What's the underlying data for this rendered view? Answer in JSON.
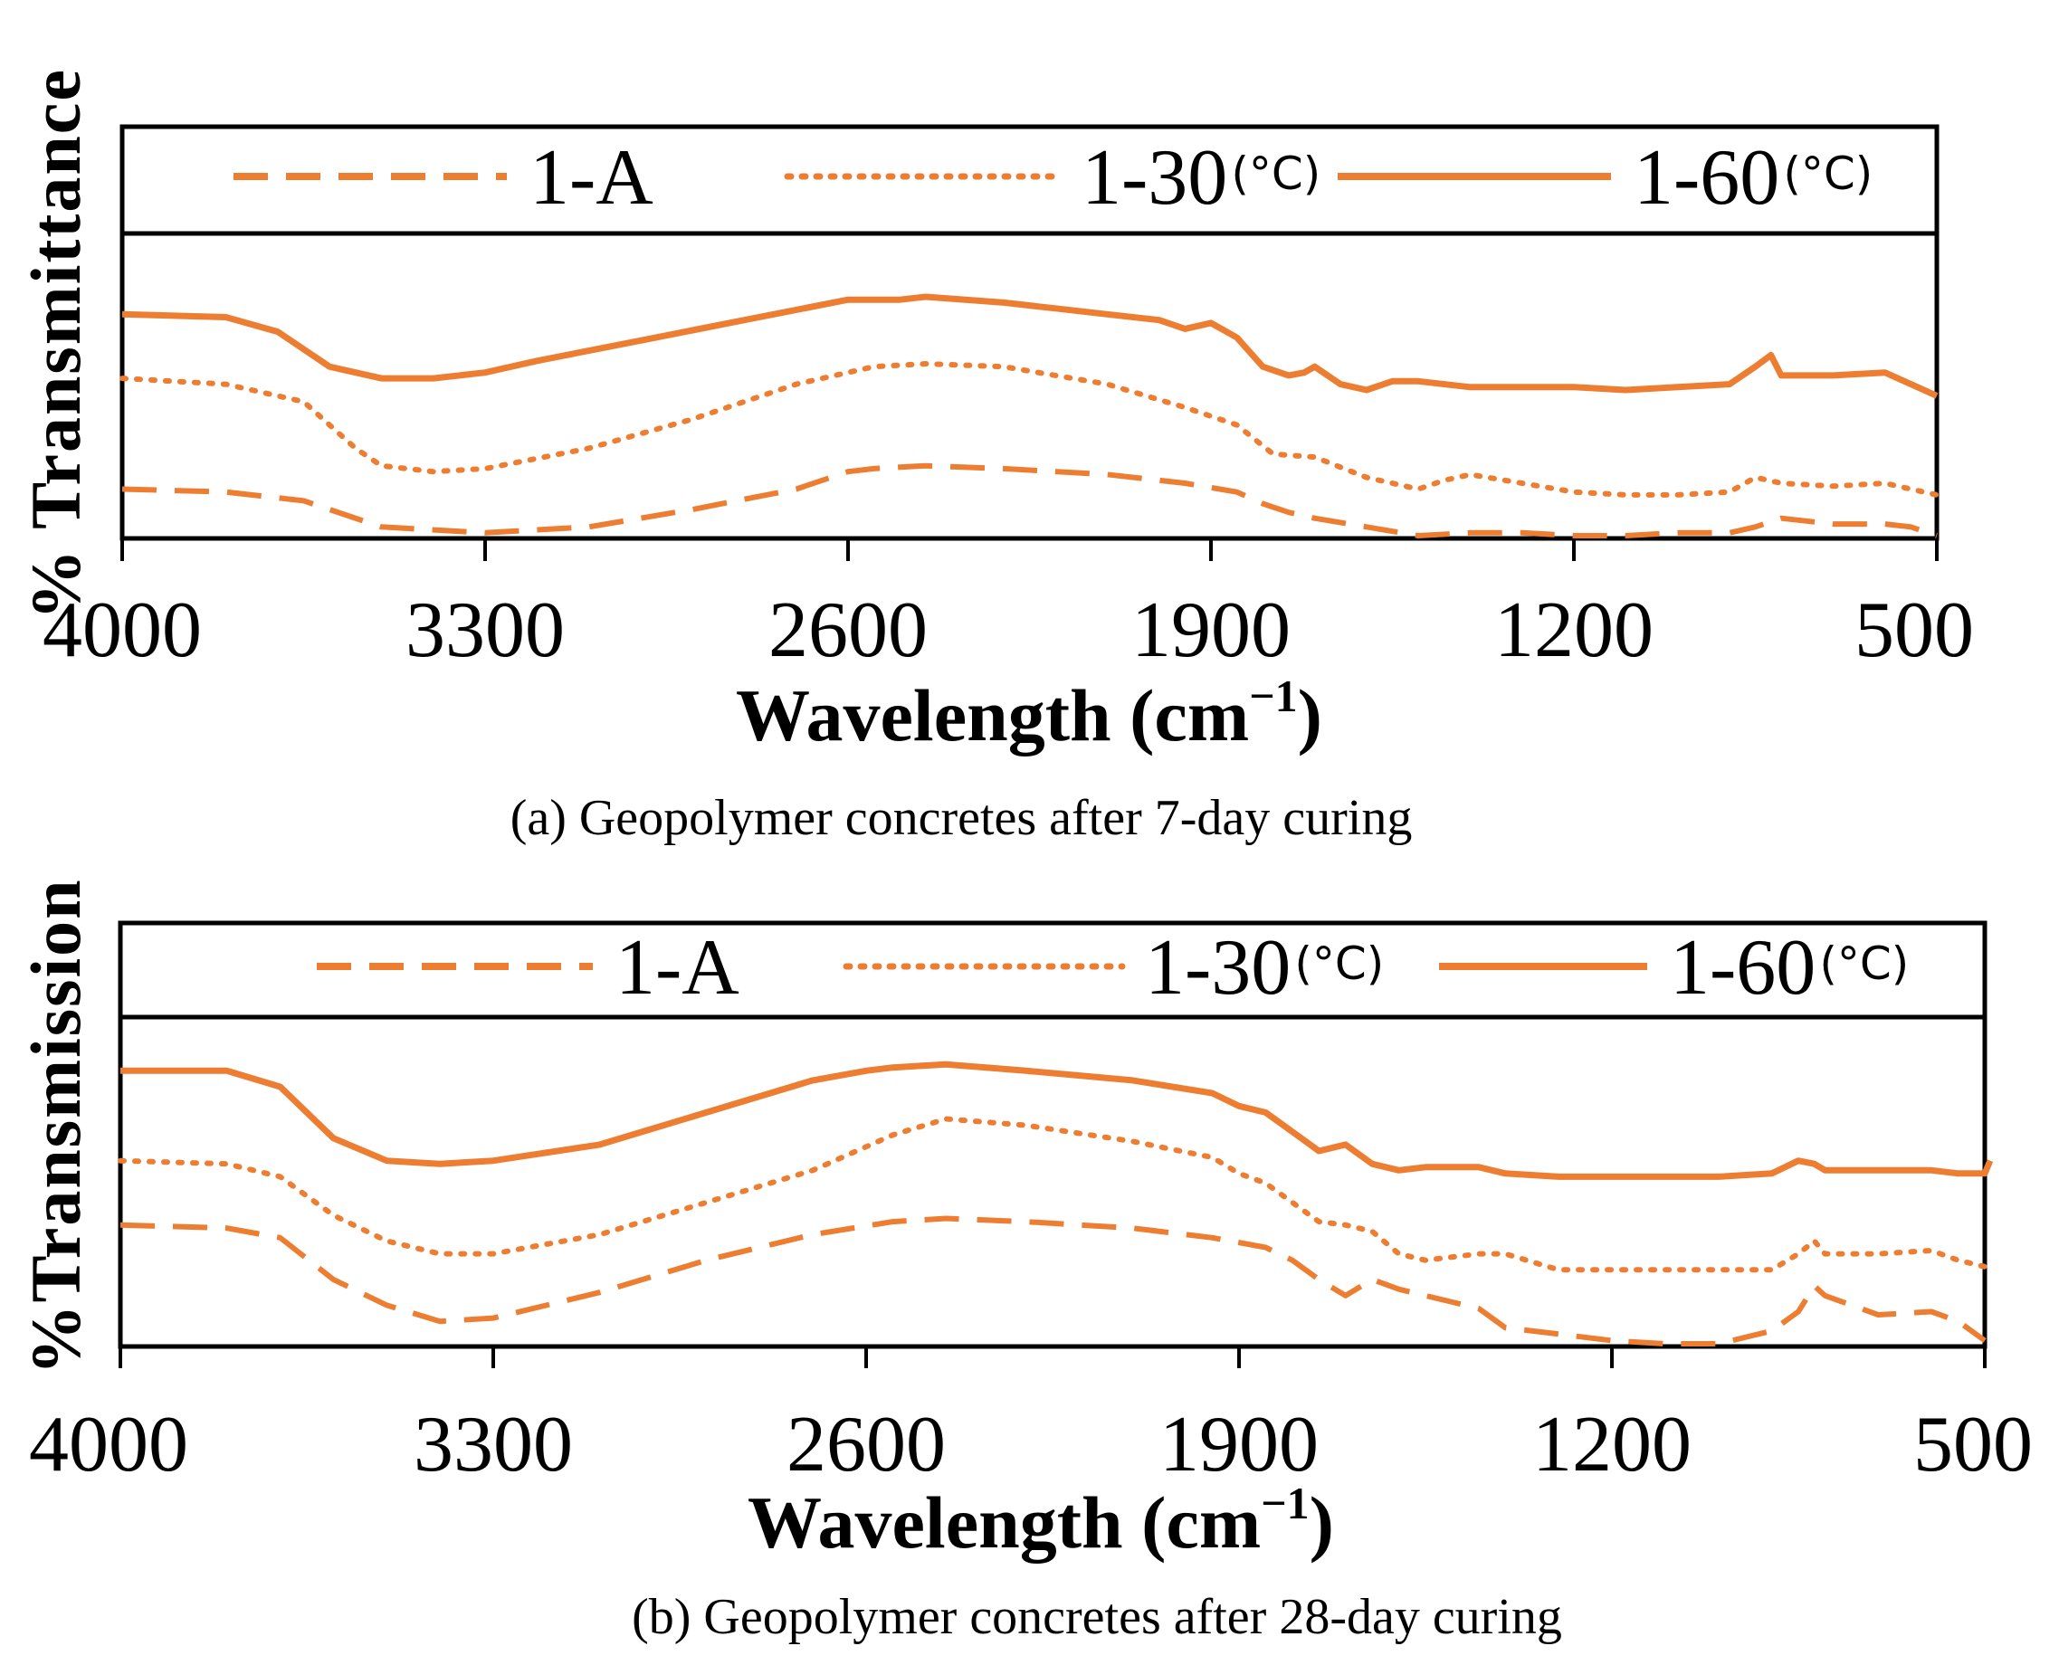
{
  "colors": {
    "series": "#ED7D31",
    "axis": "#000000"
  },
  "chart_data": [
    {
      "type": "line",
      "panel_caption": "(a) Geopolymer concretes after 7-day curing",
      "ylabel": "% Transmittance",
      "xlabel": "Wavelength (cm",
      "xlabel_sup": "−1",
      "xlabel_close": ")",
      "x_ticks": [
        "4000",
        "3300",
        "2600",
        "1900",
        "1200",
        "500"
      ],
      "xlim": [
        4000,
        500
      ],
      "x_reversed": true,
      "ylim": [
        0,
        100
      ],
      "grid": false,
      "legend_position": "top",
      "series": [
        {
          "name": "1-A",
          "unit": "",
          "style": "dashed",
          "x": [
            4000,
            3800,
            3650,
            3500,
            3300,
            3100,
            2900,
            2700,
            2600,
            2550,
            2450,
            2300,
            2100,
            1950,
            1850,
            1800,
            1750,
            1700,
            1600,
            1500,
            1400,
            1300,
            1200,
            1100,
            1000,
            900,
            850,
            800,
            700,
            600,
            550,
            500
          ],
          "y": [
            16,
            15,
            12,
            3,
            1,
            3,
            9,
            16,
            22,
            23,
            24,
            23,
            21,
            18,
            15,
            11,
            8,
            6,
            3,
            0,
            1,
            1,
            0,
            0,
            1,
            1,
            3,
            6,
            4,
            4,
            3,
            0
          ]
        },
        {
          "name": "1-30",
          "unit": "(°C)",
          "style": "dotted",
          "x": [
            4000,
            3800,
            3650,
            3550,
            3500,
            3400,
            3300,
            3100,
            2900,
            2700,
            2550,
            2450,
            2300,
            2100,
            1950,
            1850,
            1780,
            1700,
            1600,
            1500,
            1450,
            1400,
            1300,
            1200,
            1100,
            1000,
            900,
            850,
            800,
            700,
            600,
            550,
            500
          ],
          "y": [
            54,
            52,
            46,
            30,
            24,
            22,
            23,
            30,
            40,
            52,
            58,
            59,
            58,
            52,
            44,
            38,
            28,
            27,
            20,
            16,
            19,
            21,
            18,
            15,
            14,
            14,
            15,
            20,
            18,
            17,
            18,
            16,
            14
          ]
        },
        {
          "name": "1-60",
          "unit": "(°C)",
          "style": "solid",
          "x": [
            4000,
            3800,
            3700,
            3600,
            3500,
            3400,
            3300,
            3200,
            3000,
            2800,
            2600,
            2500,
            2450,
            2300,
            2200,
            2100,
            2000,
            1950,
            1900,
            1850,
            1800,
            1750,
            1720,
            1700,
            1650,
            1600,
            1550,
            1500,
            1400,
            1300,
            1200,
            1100,
            1000,
            900,
            850,
            820,
            800,
            700,
            600,
            550,
            500
          ],
          "y": [
            76,
            75,
            70,
            58,
            54,
            54,
            56,
            60,
            67,
            74,
            81,
            81,
            82,
            80,
            78,
            76,
            74,
            71,
            73,
            68,
            58,
            55,
            56,
            58,
            52,
            50,
            53,
            53,
            51,
            51,
            51,
            50,
            51,
            52,
            58,
            62,
            55,
            55,
            56,
            52,
            48
          ]
        }
      ]
    },
    {
      "type": "line",
      "panel_caption": "(b) Geopolymer concretes after 28-day curing",
      "ylabel": "%Transmission",
      "xlabel": "Wavelength (cm",
      "xlabel_sup": "−1",
      "xlabel_close": ")",
      "x_ticks": [
        "4000",
        "3300",
        "2600",
        "1900",
        "1200",
        "500"
      ],
      "xlim": [
        4000,
        500
      ],
      "x_reversed": true,
      "ylim": [
        0,
        100
      ],
      "grid": false,
      "legend_position": "top",
      "series": [
        {
          "name": "1-A",
          "unit": "",
          "style": "dashed",
          "x": [
            4000,
            3800,
            3700,
            3600,
            3500,
            3400,
            3300,
            3100,
            2900,
            2700,
            2550,
            2450,
            2300,
            2100,
            1950,
            1850,
            1800,
            1750,
            1700,
            1650,
            1600,
            1550,
            1450,
            1400,
            1300,
            1200,
            1100,
            1000,
            900,
            850,
            820,
            800,
            700,
            600,
            550,
            500
          ],
          "y": [
            37,
            36,
            33,
            20,
            12,
            7,
            8,
            16,
            26,
            34,
            38,
            39,
            38,
            36,
            33,
            30,
            26,
            20,
            15,
            20,
            17,
            15,
            11,
            5,
            3,
            1,
            0,
            0,
            4,
            10,
            18,
            15,
            9,
            10,
            7,
            1
          ]
        },
        {
          "name": "1-30",
          "unit": "(°C)",
          "style": "dotted",
          "x": [
            4000,
            3800,
            3700,
            3600,
            3500,
            3400,
            3300,
            3100,
            2900,
            2700,
            2550,
            2450,
            2300,
            2100,
            1950,
            1900,
            1850,
            1800,
            1750,
            1700,
            1650,
            1600,
            1550,
            1450,
            1400,
            1300,
            1200,
            1100,
            1000,
            900,
            850,
            820,
            800,
            700,
            600,
            550,
            500
          ],
          "y": [
            57,
            56,
            52,
            40,
            32,
            28,
            28,
            34,
            44,
            54,
            65,
            70,
            68,
            63,
            58,
            53,
            50,
            44,
            38,
            37,
            35,
            28,
            26,
            28,
            28,
            23,
            23,
            23,
            23,
            23,
            28,
            32,
            28,
            28,
            29,
            26,
            24
          ]
        },
        {
          "name": "1-60",
          "unit": "(°C)",
          "style": "solid",
          "x": [
            4000,
            3800,
            3700,
            3600,
            3500,
            3400,
            3300,
            3100,
            2900,
            2700,
            2600,
            2550,
            2450,
            2300,
            2100,
            1950,
            1900,
            1850,
            1800,
            1750,
            1700,
            1650,
            1600,
            1550,
            1450,
            1400,
            1300,
            1200,
            1100,
            1000,
            900,
            850,
            820,
            800,
            700,
            600,
            550,
            500,
            490
          ],
          "y": [
            85,
            85,
            80,
            64,
            57,
            56,
            57,
            62,
            72,
            82,
            85,
            86,
            87,
            85,
            82,
            78,
            74,
            72,
            66,
            60,
            62,
            56,
            54,
            55,
            55,
            53,
            52,
            52,
            52,
            52,
            53,
            57,
            56,
            54,
            54,
            54,
            53,
            53,
            57
          ]
        }
      ]
    }
  ]
}
